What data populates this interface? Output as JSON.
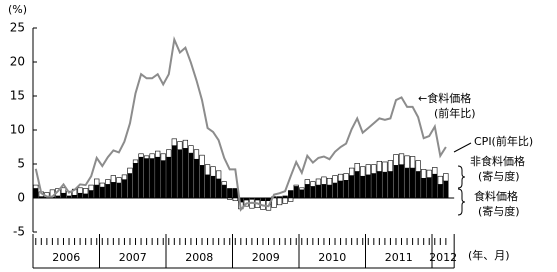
{
  "chart_data": {
    "type": "bar",
    "y_unit": "(%)",
    "x_unit": "(年、月)",
    "categories": [
      null,
      null,
      null,
      null,
      null,
      null,
      null,
      null,
      null,
      null,
      null,
      null,
      null,
      null,
      null,
      null,
      null,
      null,
      null,
      null,
      null,
      null,
      null,
      null,
      null,
      null,
      null,
      null,
      null,
      null,
      null,
      null,
      null,
      null,
      null,
      null,
      null,
      null,
      null,
      null,
      null,
      null,
      null,
      null,
      null,
      null,
      null,
      null,
      null,
      null,
      null,
      null,
      null,
      null,
      null,
      null,
      null,
      null,
      null,
      null,
      null,
      null,
      null,
      null,
      null,
      null,
      null,
      null,
      null,
      null,
      null,
      null,
      null,
      null,
      null
    ],
    "x_group_labels": [
      "2006",
      "2007",
      "2008",
      "2009",
      "2010",
      "2011",
      "2012"
    ],
    "ylim": [
      -5,
      25
    ],
    "yticks": [
      25,
      20,
      15,
      10,
      5,
      0,
      -5
    ],
    "annotations": [
      "CPI(前年比)"
    ],
    "series": [
      {
        "name": [
          "食料価格",
          "(寄与度)"
        ],
        "kind": "bar",
        "color": "#000000",
        "values": [
          1.4,
          0.2,
          0.1,
          0.1,
          0.3,
          0.7,
          0.3,
          0.4,
          0.7,
          0.6,
          1.1,
          1.9,
          1.6,
          2.0,
          2.3,
          2.2,
          2.7,
          3.6,
          5.1,
          6.0,
          5.8,
          5.8,
          6.0,
          5.5,
          6.0,
          7.7,
          7.1,
          7.3,
          6.6,
          5.7,
          4.8,
          3.4,
          3.2,
          2.8,
          1.9,
          1.4,
          1.4,
          -0.6,
          -0.3,
          -0.2,
          -0.3,
          -0.4,
          -0.4,
          0.2,
          0.2,
          0.3,
          1.1,
          1.7,
          1.2,
          2.0,
          1.7,
          1.9,
          2.0,
          1.9,
          2.2,
          2.5,
          2.6,
          3.3,
          3.9,
          3.2,
          3.4,
          3.6,
          3.9,
          3.8,
          3.9,
          4.8,
          4.9,
          4.4,
          4.4,
          3.9,
          2.9,
          3.0,
          3.5,
          2.0,
          2.5
        ]
      },
      {
        "name": [
          "非食料価格",
          "(寄与度)"
        ],
        "kind": "bar",
        "color": "#ffffff",
        "values": [
          0.5,
          0.7,
          0.7,
          1.1,
          1.1,
          0.8,
          0.7,
          0.9,
          0.8,
          0.8,
          0.8,
          0.9,
          0.6,
          0.7,
          1.0,
          0.8,
          0.7,
          0.8,
          0.5,
          0.5,
          0.4,
          0.7,
          0.9,
          1.0,
          1.1,
          1.0,
          1.2,
          1.2,
          1.1,
          1.4,
          1.5,
          1.5,
          1.4,
          1.2,
          0.5,
          -0.2,
          -0.4,
          -1.0,
          -0.9,
          -1.3,
          -1.1,
          -1.3,
          -1.4,
          -1.4,
          -1.0,
          -0.8,
          -0.5,
          0.2,
          0.3,
          0.7,
          0.7,
          0.9,
          1.1,
          1.0,
          1.1,
          1.0,
          1.0,
          1.1,
          1.2,
          1.4,
          1.5,
          1.3,
          1.5,
          1.5,
          1.6,
          1.6,
          1.6,
          1.8,
          1.7,
          1.6,
          1.3,
          1.1,
          1.0,
          1.2,
          1.1
        ]
      },
      {
        "name": [
          "←食料価格",
          "(前年比)"
        ],
        "kind": "line",
        "color": "#8c8c8c",
        "values": [
          4.3,
          0.7,
          0.2,
          0.2,
          1.0,
          2.0,
          0.8,
          1.2,
          2.0,
          1.9,
          3.2,
          5.9,
          4.7,
          6.0,
          7.0,
          6.7,
          8.3,
          11.0,
          15.4,
          18.2,
          17.6,
          17.6,
          18.2,
          16.7,
          18.2,
          23.3,
          21.4,
          22.1,
          19.9,
          17.3,
          14.4,
          10.3,
          9.7,
          8.5,
          5.9,
          4.2,
          4.2,
          -1.7,
          -0.8,
          -0.7,
          -0.8,
          -1.1,
          -1.2,
          0.5,
          0.7,
          1.0,
          3.2,
          5.3,
          3.7,
          6.2,
          5.2,
          5.9,
          6.1,
          5.7,
          6.8,
          7.5,
          8.0,
          10.1,
          11.7,
          9.6,
          10.3,
          11.0,
          11.7,
          11.5,
          11.7,
          14.4,
          14.8,
          13.4,
          13.4,
          11.9,
          8.8,
          9.1,
          10.5,
          6.2,
          7.5
        ]
      }
    ]
  }
}
